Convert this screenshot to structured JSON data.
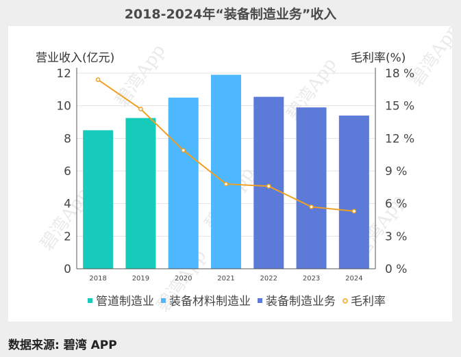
{
  "title": "2018-2024年“装备制造业务”收入",
  "source": "数据来源: 碧湾 APP",
  "watermark": "碧湾App",
  "chart_data": {
    "type": "bar",
    "categories": [
      "2018",
      "2019",
      "2020",
      "2021",
      "2022",
      "2023",
      "2024"
    ],
    "series": [
      {
        "name": "管道制造业",
        "color": "#16cbb9",
        "values": [
          8.5,
          9.25,
          null,
          null,
          null,
          null,
          null
        ]
      },
      {
        "name": "装备材料制造业",
        "color": "#4db8ff",
        "values": [
          null,
          null,
          10.5,
          11.9,
          null,
          null,
          null
        ]
      },
      {
        "name": "装备制造业务",
        "color": "#5c7bd9",
        "values": [
          null,
          null,
          null,
          null,
          10.55,
          9.9,
          9.4
        ]
      },
      {
        "name": "毛利率",
        "type": "line",
        "axis": "right",
        "color": "#f0a020",
        "values": [
          17.4,
          14.7,
          10.9,
          7.8,
          7.6,
          5.7,
          5.3
        ]
      }
    ],
    "ylabel": "营业收入(亿元)",
    "y2label": "毛利率(%)",
    "ylim": [
      0,
      12
    ],
    "y2lim": [
      0,
      18
    ],
    "yticks": [
      "0",
      "2",
      "4",
      "6",
      "8",
      "10",
      "12"
    ],
    "y2ticks": [
      "0 %",
      "3 %",
      "6 %",
      "9 %",
      "12 %",
      "15 %",
      "18 %"
    ],
    "grid": true,
    "legend_position": "bottom"
  }
}
